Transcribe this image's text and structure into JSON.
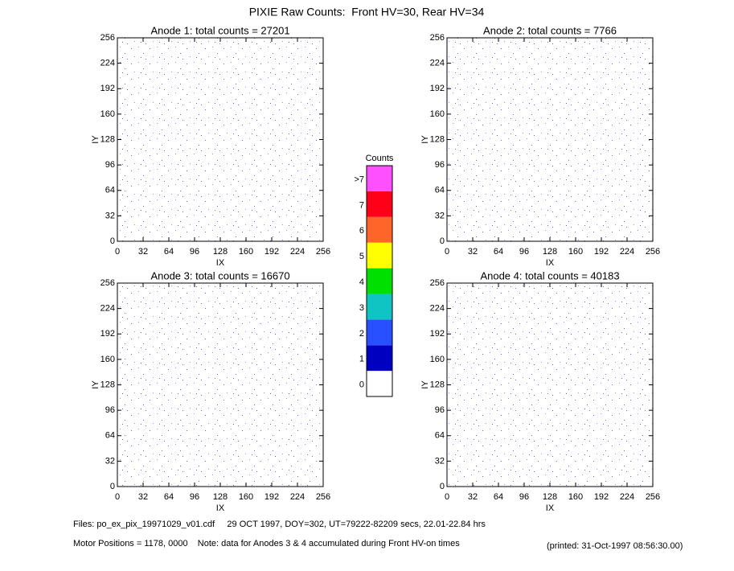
{
  "title": "PIXIE Raw Counts:  Front HV=30, Rear HV=34",
  "chart_data": [
    {
      "type": "heatmap",
      "title": "Anode 1: total counts = 27201",
      "xlabel": "IX",
      "ylabel": "IY",
      "xlim": [
        0,
        256
      ],
      "ylim": [
        0,
        256
      ],
      "xticks": [
        0,
        32,
        64,
        96,
        128,
        160,
        192,
        224,
        256
      ],
      "yticks": [
        0,
        32,
        64,
        96,
        128,
        160,
        192,
        224,
        256
      ]
    },
    {
      "type": "heatmap",
      "title": "Anode 2: total counts = 7766",
      "xlabel": "IX",
      "ylabel": "IY",
      "xlim": [
        0,
        256
      ],
      "ylim": [
        0,
        256
      ],
      "xticks": [
        0,
        32,
        64,
        96,
        128,
        160,
        192,
        224,
        256
      ],
      "yticks": [
        0,
        32,
        64,
        96,
        128,
        160,
        192,
        224,
        256
      ]
    },
    {
      "type": "heatmap",
      "title": "Anode 3: total counts = 16670",
      "xlabel": "IX",
      "ylabel": "IY",
      "xlim": [
        0,
        256
      ],
      "ylim": [
        0,
        256
      ],
      "xticks": [
        0,
        32,
        64,
        96,
        128,
        160,
        192,
        224,
        256
      ],
      "yticks": [
        0,
        32,
        64,
        96,
        128,
        160,
        192,
        224,
        256
      ]
    },
    {
      "type": "heatmap",
      "title": "Anode 4: total counts = 40183",
      "xlabel": "IX",
      "ylabel": "IY",
      "xlim": [
        0,
        256
      ],
      "ylim": [
        0,
        256
      ],
      "xticks": [
        0,
        32,
        64,
        96,
        128,
        160,
        192,
        224,
        256
      ],
      "yticks": [
        0,
        32,
        64,
        96,
        128,
        160,
        192,
        224,
        256
      ]
    }
  ],
  "colorbar": {
    "title": "Counts",
    "levels": [
      0,
      1,
      2,
      3,
      4,
      5,
      6,
      7,
      {
        "value": 8,
        "label": ">7"
      }
    ],
    "colors": [
      "#ffffff",
      "#0000c0",
      "#2850ff",
      "#10c4c4",
      "#00e000",
      "#ffff00",
      "#ff6428",
      "#ff0018",
      "#ff50ff"
    ]
  },
  "footer": {
    "files": "Files: po_ex_pix_19971029_v01.cdf     29 OCT 1997, DOY=302, UT=79222-82209 secs, 22.01-22.84 hrs",
    "motor": "Motor Positions = 1178, 0000    Note: data for Anodes 3 & 4 accumulated during Front HV-on times",
    "printed": "(printed: 31-Oct-1997 08:56:30.00)"
  }
}
